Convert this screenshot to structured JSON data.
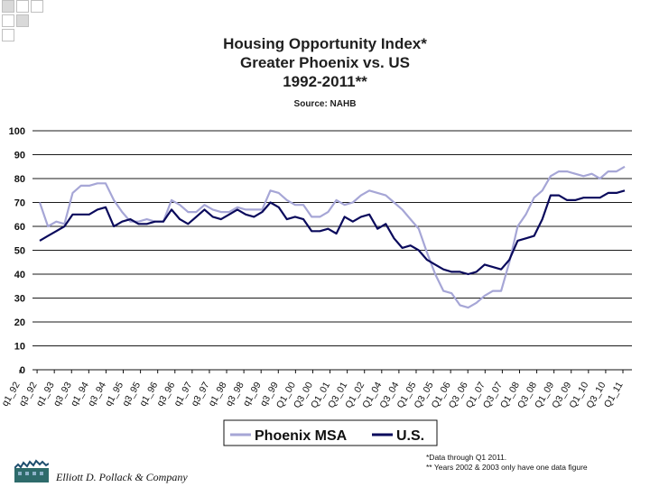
{
  "header": {
    "title_lines": [
      "Housing Opportunity Index*",
      "Greater Phoenix vs. US",
      "1992-2011**"
    ],
    "source": "Source: NAHB"
  },
  "colors": {
    "phoenix": "#a6a6d6",
    "us": "#0a0a5c",
    "grid": "#1a1a1a",
    "deco_fill": "#d9d9d9",
    "deco_border": "#c0c0c0"
  },
  "chart_data": {
    "type": "line",
    "title": "Housing Opportunity Index* Greater Phoenix vs. US 1992-2011**",
    "xlabel": "",
    "ylabel": "",
    "ylim": [
      0,
      100
    ],
    "y_ticks": [
      0,
      10,
      20,
      30,
      40,
      50,
      60,
      70,
      80,
      90,
      100
    ],
    "grid": true,
    "legend_position": "bottom",
    "x_tick_labels": [
      "q1_92",
      "q3_92",
      "q1_93",
      "q3_93",
      "q1_94",
      "q3_94",
      "q1_95",
      "q3_95",
      "q1_96",
      "q3_96",
      "q1_97",
      "q3_97",
      "q1_98",
      "q3_98",
      "q1_99",
      "q3_99",
      "Q1_00",
      "Q3_00",
      "Q1_01",
      "Q3_01",
      "Q1_02",
      "Q1_04",
      "Q3_04",
      "Q1_05",
      "Q3_05",
      "Q1_06",
      "Q3_06",
      "Q1_07",
      "Q3_07",
      "Q1_08",
      "Q3_08",
      "Q1_09",
      "Q3_09",
      "Q1_10",
      "Q3_10",
      "Q1_11"
    ],
    "series": [
      {
        "name": "Phoenix MSA",
        "values": [
          70,
          60,
          62,
          61,
          74,
          77,
          77,
          78,
          78,
          71,
          66,
          62,
          62,
          63,
          62,
          62,
          71,
          69,
          66,
          66,
          69,
          67,
          66,
          66,
          68,
          67,
          67,
          67,
          75,
          74,
          71,
          69,
          69,
          64,
          64,
          66,
          71,
          69,
          70,
          73,
          75,
          74,
          73,
          70,
          67,
          63,
          59,
          49,
          40,
          33,
          32,
          27,
          26,
          28,
          31,
          33,
          33,
          45,
          60,
          65,
          72,
          75,
          81,
          83,
          83,
          82,
          81,
          82,
          80,
          83,
          83,
          85
        ]
      },
      {
        "name": "U.S.",
        "values": [
          54,
          56,
          58,
          60,
          65,
          65,
          65,
          67,
          68,
          60,
          62,
          63,
          61,
          61,
          62,
          62,
          67,
          63,
          61,
          64,
          67,
          64,
          63,
          65,
          67,
          65,
          64,
          66,
          70,
          68,
          63,
          64,
          63,
          58,
          58,
          59,
          57,
          64,
          62,
          64,
          65,
          59,
          61,
          55,
          51,
          52,
          50,
          46,
          44,
          42,
          41,
          41,
          40,
          41,
          44,
          43,
          42,
          46,
          54,
          55,
          56,
          63,
          73,
          73,
          71,
          71,
          72,
          72,
          72,
          74,
          74,
          75
        ]
      }
    ]
  },
  "legend": {
    "items": [
      "Phoenix MSA",
      "U.S."
    ]
  },
  "footnotes": [
    "*Data through Q1 2011.",
    "** Years 2002 & 2003 only have one data figure"
  ],
  "company": "Elliott D. Pollack & Company"
}
